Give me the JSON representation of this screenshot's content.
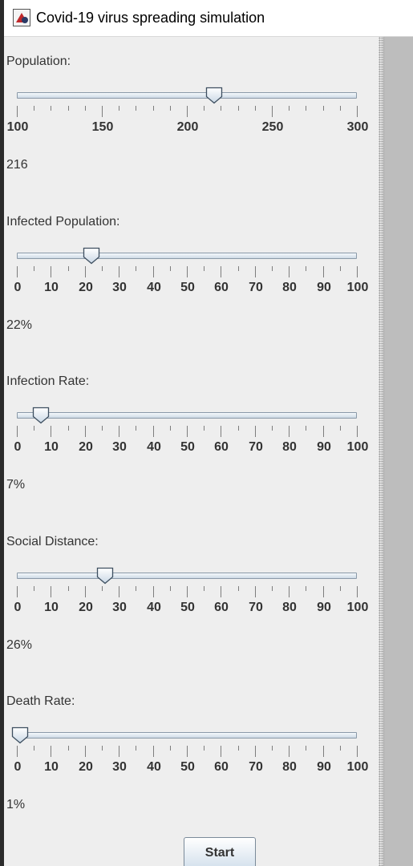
{
  "window": {
    "title": "Covid-19 virus spreading simulation",
    "app_icon": "java-app-icon"
  },
  "sliders": [
    {
      "key": "population",
      "label": "Population:",
      "min": 100,
      "max": 300,
      "value": 216,
      "major_ticks": [
        100,
        150,
        200,
        250,
        300
      ],
      "minor_step": 10,
      "value_text": "216"
    },
    {
      "key": "infected",
      "label": "Infected Population:",
      "min": 0,
      "max": 100,
      "value": 22,
      "major_ticks": [
        0,
        10,
        20,
        30,
        40,
        50,
        60,
        70,
        80,
        90,
        100
      ],
      "minor_step": 5,
      "value_text": "22%"
    },
    {
      "key": "infection-rate",
      "label": "Infection Rate:",
      "min": 0,
      "max": 100,
      "value": 7,
      "major_ticks": [
        0,
        10,
        20,
        30,
        40,
        50,
        60,
        70,
        80,
        90,
        100
      ],
      "minor_step": 5,
      "value_text": "7%"
    },
    {
      "key": "social-distance",
      "label": "Social Distance:",
      "min": 0,
      "max": 100,
      "value": 26,
      "major_ticks": [
        0,
        10,
        20,
        30,
        40,
        50,
        60,
        70,
        80,
        90,
        100
      ],
      "minor_step": 5,
      "value_text": "26%"
    },
    {
      "key": "death-rate",
      "label": "Death Rate:",
      "min": 0,
      "max": 100,
      "value": 1,
      "major_ticks": [
        0,
        10,
        20,
        30,
        40,
        50,
        60,
        70,
        80,
        90,
        100
      ],
      "minor_step": 5,
      "value_text": "1%"
    }
  ],
  "start_button": {
    "label": "Start"
  }
}
